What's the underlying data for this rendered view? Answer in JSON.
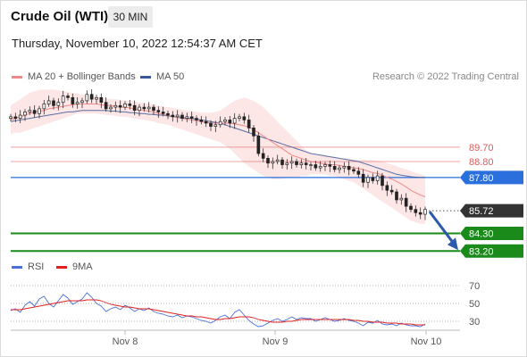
{
  "header": {
    "instrument": "Crude Oil (WTI)",
    "timeframe": "30 MIN",
    "datetime": "Thursday, November 10, 2022 12:54:37 AM CET"
  },
  "legend": {
    "ma20": {
      "label": "MA 20 + Bollinger Bands",
      "color": "#f08a8a"
    },
    "ma50": {
      "label": "MA 50",
      "color": "#3b5998"
    }
  },
  "credit": "Research © 2022 Trading Central",
  "rsi_legend": {
    "rsi": {
      "label": "RSI",
      "color": "#4a6fd8"
    },
    "ma9": {
      "label": "9MA",
      "color": "#e02020"
    }
  },
  "chart_data": [
    {
      "type": "candlestick",
      "title": "",
      "ylim": [
        82.6,
        93.6
      ],
      "grid": false,
      "legend_placement": "top-left",
      "x_ticks": [
        "Nov 8",
        "Nov 9",
        "Nov 10"
      ],
      "price_levels": [
        {
          "value": 89.7,
          "label": "89.70",
          "kind": "resistance",
          "color": "#e05a5a"
        },
        {
          "value": 88.8,
          "label": "88.80",
          "kind": "resistance",
          "color": "#e05a5a"
        },
        {
          "value": 87.8,
          "label": "87.80",
          "kind": "pivot",
          "color": "#2a6fdb"
        },
        {
          "value": 85.72,
          "label": "85.72",
          "kind": "last",
          "color": "#333333"
        },
        {
          "value": 84.3,
          "label": "84.30",
          "kind": "support",
          "color": "#1a8a1a"
        },
        {
          "value": 83.2,
          "label": "83.20",
          "kind": "support",
          "color": "#1a8a1a"
        }
      ],
      "close": [
        91.6,
        91.5,
        91.7,
        91.9,
        92.0,
        91.8,
        92.1,
        92.4,
        92.6,
        92.3,
        92.5,
        92.9,
        92.8,
        92.4,
        92.5,
        92.6,
        93.0,
        92.7,
        92.8,
        92.5,
        92.1,
        92.2,
        92.3,
        92.2,
        92.4,
        92.3,
        92.0,
        92.2,
        92.1,
        92.2,
        92.0,
        91.9,
        91.8,
        91.7,
        91.6,
        91.7,
        91.5,
        91.6,
        91.5,
        91.4,
        91.3,
        91.2,
        91.0,
        91.1,
        91.3,
        91.4,
        91.2,
        91.5,
        91.6,
        91.4,
        90.9,
        90.4,
        89.3,
        89.0,
        88.7,
        88.8,
        88.9,
        88.6,
        88.7,
        88.8,
        88.6,
        88.7,
        88.6,
        88.6,
        88.4,
        88.5,
        88.6,
        88.5,
        88.3,
        88.4,
        88.5,
        88.3,
        88.2,
        88.0,
        87.5,
        87.8,
        87.6,
        87.9,
        87.3,
        87.0,
        86.9,
        86.4,
        86.5,
        86.0,
        85.8,
        85.6,
        85.5,
        85.8
      ],
      "ma20": [
        91.4,
        91.5,
        91.6,
        91.7,
        91.8,
        91.9,
        91.95,
        92.0,
        92.1,
        92.15,
        92.2,
        92.25,
        92.3,
        92.35,
        92.4,
        92.4,
        92.4,
        92.4,
        92.4,
        92.35,
        92.3,
        92.3,
        92.25,
        92.2,
        92.2,
        92.15,
        92.1,
        92.05,
        92.0,
        91.95,
        91.9,
        91.8,
        91.75,
        91.7,
        91.6,
        91.55,
        91.5,
        91.45,
        91.4,
        91.35,
        91.3,
        91.25,
        91.2,
        91.2,
        91.2,
        91.2,
        91.2,
        91.15,
        91.1,
        91.05,
        90.95,
        90.8,
        90.6,
        90.4,
        90.2,
        90.0,
        89.8,
        89.6,
        89.4,
        89.2,
        89.1,
        89.0,
        88.9,
        88.8,
        88.75,
        88.7,
        88.65,
        88.6,
        88.6,
        88.55,
        88.5,
        88.45,
        88.4,
        88.35,
        88.3,
        88.2,
        88.1,
        88.05,
        87.95,
        87.8,
        87.7,
        87.55,
        87.4,
        87.2,
        87.0,
        86.85,
        86.7,
        86.6
      ],
      "ma50": [
        91.3,
        91.35,
        91.4,
        91.45,
        91.5,
        91.55,
        91.6,
        91.65,
        91.7,
        91.75,
        91.8,
        91.85,
        91.9,
        91.9,
        91.95,
        92.0,
        92.0,
        92.0,
        92.0,
        92.0,
        92.0,
        91.95,
        91.95,
        91.9,
        91.9,
        91.85,
        91.85,
        91.8,
        91.8,
        91.75,
        91.75,
        91.7,
        91.7,
        91.65,
        91.6,
        91.6,
        91.55,
        91.5,
        91.5,
        91.45,
        91.4,
        91.35,
        91.3,
        91.25,
        91.2,
        91.1,
        91.0,
        90.9,
        90.8,
        90.7,
        90.6,
        90.5,
        90.4,
        90.3,
        90.2,
        90.1,
        90.0,
        89.9,
        89.8,
        89.7,
        89.6,
        89.5,
        89.4,
        89.3,
        89.25,
        89.2,
        89.15,
        89.1,
        89.05,
        89.0,
        88.95,
        88.9,
        88.85,
        88.8,
        88.7,
        88.6,
        88.5,
        88.4,
        88.3,
        88.2,
        88.1,
        88.0,
        87.95,
        87.9,
        87.85,
        87.82,
        87.8,
        87.8
      ],
      "bollinger_upper": [
        92.3,
        92.5,
        92.7,
        92.9,
        93.1,
        93.2,
        93.3,
        93.3,
        93.3,
        93.3,
        93.25,
        93.2,
        93.15,
        93.1,
        93.05,
        93.0,
        92.95,
        92.9,
        92.85,
        92.8,
        92.75,
        92.7,
        92.7,
        92.65,
        92.6,
        92.6,
        92.55,
        92.5,
        92.45,
        92.4,
        92.35,
        92.3,
        92.25,
        92.2,
        92.15,
        92.1,
        92.05,
        92.0,
        91.95,
        91.9,
        91.85,
        91.85,
        91.85,
        91.9,
        92.0,
        92.2,
        92.4,
        92.6,
        92.7,
        92.8,
        92.7,
        92.6,
        92.4,
        92.2,
        91.9,
        91.6,
        91.3,
        91.0,
        90.7,
        90.4,
        90.1,
        89.8,
        89.5,
        89.3,
        89.2,
        89.2,
        89.2,
        89.1,
        89.1,
        89.0,
        89.0,
        89.0,
        88.9,
        88.9,
        88.9,
        88.9,
        88.9,
        88.85,
        88.8,
        88.7,
        88.6,
        88.5,
        88.4,
        88.3,
        88.2,
        88.1,
        88.0,
        87.9
      ],
      "bollinger_lower": [
        90.5,
        90.6,
        90.6,
        90.7,
        90.8,
        90.9,
        91.0,
        91.1,
        91.2,
        91.3,
        91.4,
        91.5,
        91.6,
        91.7,
        91.8,
        91.8,
        91.8,
        91.8,
        91.8,
        91.75,
        91.7,
        91.7,
        91.65,
        91.6,
        91.6,
        91.55,
        91.5,
        91.45,
        91.4,
        91.35,
        91.3,
        91.2,
        91.15,
        91.1,
        91.0,
        90.9,
        90.8,
        90.7,
        90.6,
        90.5,
        90.4,
        90.3,
        90.2,
        90.1,
        90.0,
        89.8,
        89.6,
        89.3,
        89.0,
        88.7,
        88.5,
        88.3,
        88.1,
        87.9,
        87.8,
        87.7,
        87.7,
        87.7,
        87.8,
        87.8,
        87.8,
        87.9,
        87.9,
        88.0,
        88.0,
        88.0,
        88.0,
        87.9,
        87.9,
        87.8,
        87.7,
        87.6,
        87.5,
        87.3,
        87.1,
        86.9,
        86.7,
        86.5,
        86.3,
        86.1,
        85.9,
        85.7,
        85.5,
        85.3,
        85.1,
        85.0,
        84.9,
        84.9
      ],
      "projection": {
        "from": 85.72,
        "to": 83.2,
        "color": "#2a5aa8"
      }
    },
    {
      "type": "line",
      "title": "",
      "ylim": [
        22,
        78
      ],
      "y_ticks": [
        70,
        50,
        30
      ],
      "series": [
        {
          "name": "RSI",
          "color": "#4a6fd8",
          "values": [
            42,
            44,
            40,
            48,
            52,
            47,
            55,
            58,
            50,
            46,
            53,
            60,
            56,
            49,
            52,
            55,
            62,
            57,
            50,
            47,
            41,
            44,
            46,
            43,
            48,
            45,
            41,
            44,
            42,
            45,
            41,
            39,
            38,
            36,
            35,
            37,
            34,
            36,
            35,
            33,
            31,
            30,
            28,
            31,
            35,
            37,
            33,
            40,
            43,
            37,
            31,
            27,
            24,
            25,
            28,
            31,
            33,
            30,
            32,
            35,
            32,
            34,
            33,
            33,
            30,
            32,
            34,
            32,
            30,
            31,
            33,
            31,
            30,
            28,
            25,
            29,
            28,
            31,
            27,
            26,
            27,
            25,
            28,
            26,
            25,
            25,
            24,
            27
          ]
        },
        {
          "name": "9MA",
          "color": "#e02020",
          "values": [
            43,
            43,
            43,
            44,
            45,
            46,
            47,
            48,
            49,
            50,
            51,
            52,
            53,
            53,
            53,
            53,
            54,
            54,
            54,
            53,
            51,
            49,
            48,
            47,
            46,
            46,
            45,
            44,
            44,
            44,
            43,
            42,
            41,
            40,
            39,
            38,
            37,
            36,
            36,
            35,
            35,
            34,
            33,
            32,
            32,
            33,
            33,
            34,
            35,
            35,
            35,
            34,
            32,
            31,
            30,
            29,
            29,
            29,
            30,
            30,
            31,
            32,
            32,
            32,
            32,
            32,
            32,
            32,
            32,
            32,
            32,
            32,
            31,
            31,
            30,
            30,
            29,
            29,
            29,
            28,
            28,
            28,
            27,
            27,
            27,
            26,
            26,
            26
          ]
        }
      ]
    }
  ]
}
